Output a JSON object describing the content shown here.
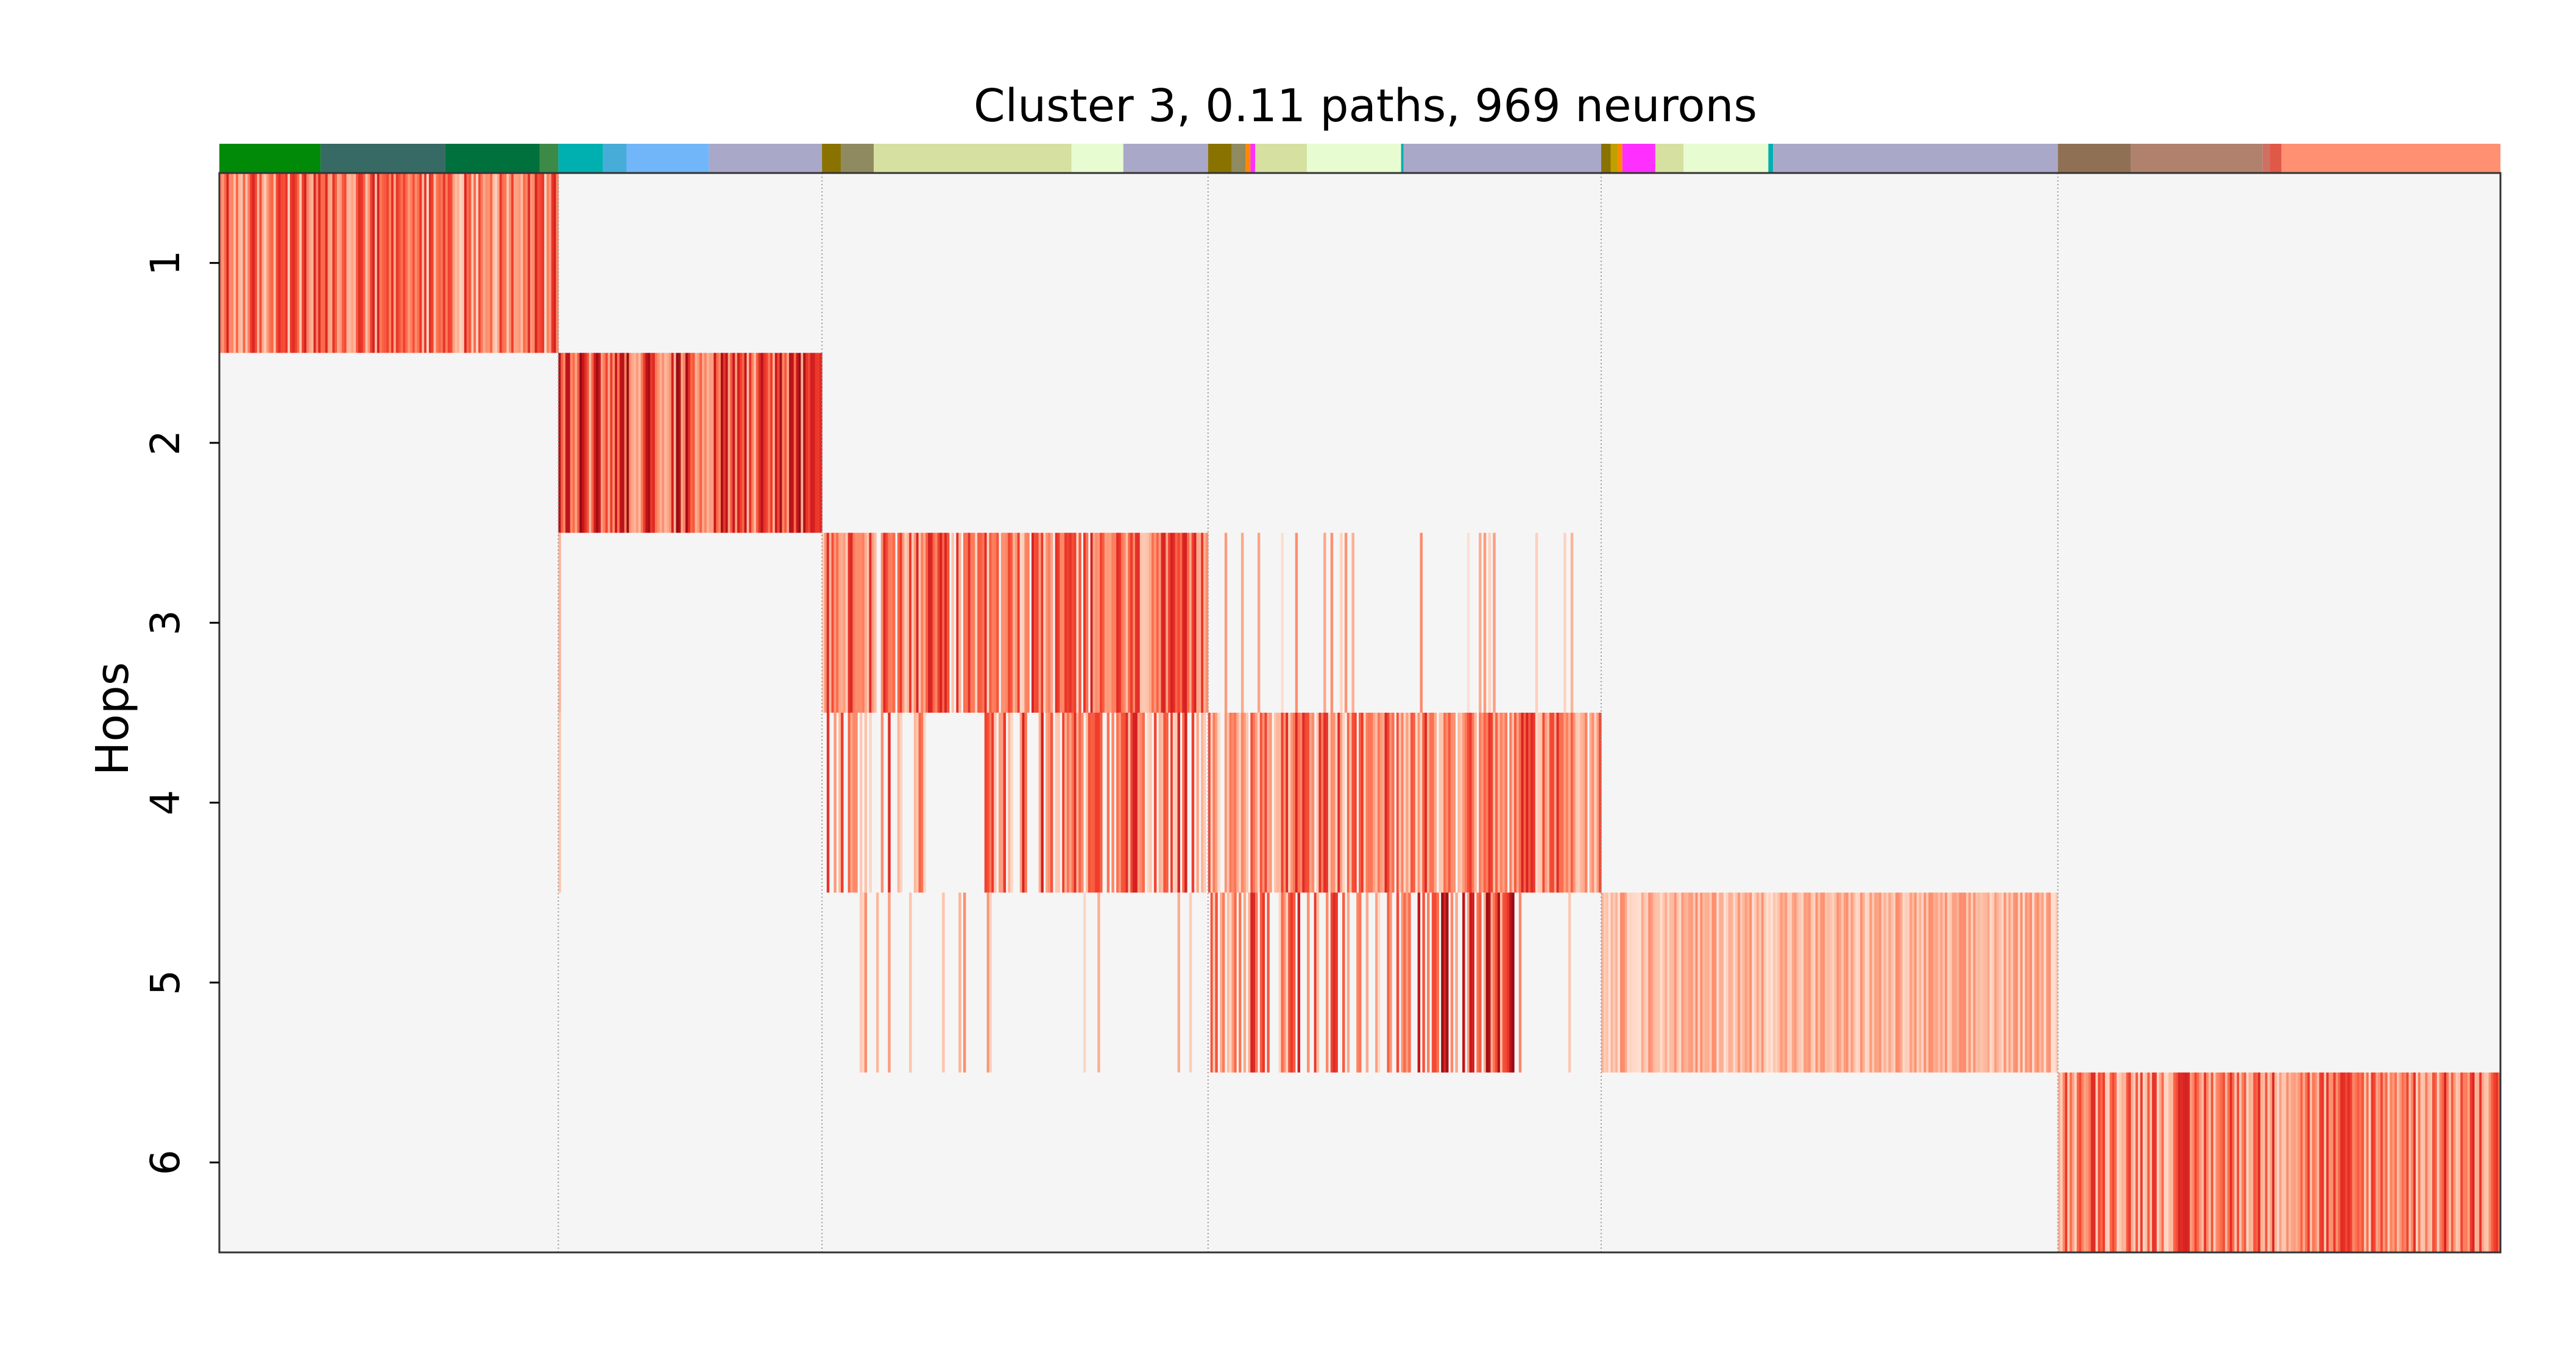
{
  "chart_data": {
    "type": "heatmap",
    "title": "Cluster 3, 0.11 paths, 969 neurons",
    "ylabel": "Hops",
    "xlabel": "",
    "y_categories": [
      "1",
      "2",
      "3",
      "4",
      "5",
      "6"
    ],
    "n_columns": 969,
    "grid": false,
    "colormap": "Reds",
    "background_color": "#f5f5f5",
    "legend": "none",
    "hop_boundaries": [
      144,
      256,
      420,
      587,
      781
    ],
    "rows": [
      {
        "hop": "1",
        "bands": [
          {
            "from": 0,
            "to": 144,
            "density": 1.0,
            "level": "medium"
          }
        ]
      },
      {
        "hop": "2",
        "bands": [
          {
            "from": 144,
            "to": 256,
            "density": 1.0,
            "level": "high"
          }
        ]
      },
      {
        "hop": "3",
        "bands": [
          {
            "from": 144,
            "to": 145,
            "density": 0.6,
            "level": "low"
          },
          {
            "from": 256,
            "to": 420,
            "density": 0.93,
            "level": "medium"
          },
          {
            "from": 420,
            "to": 587,
            "density": 0.1,
            "level": "low"
          }
        ]
      },
      {
        "hop": "4",
        "bands": [
          {
            "from": 144,
            "to": 145,
            "density": 0.6,
            "level": "low"
          },
          {
            "from": 256,
            "to": 300,
            "density": 0.6,
            "level": "medium"
          },
          {
            "from": 300,
            "to": 325,
            "density": 0.0,
            "level": "low"
          },
          {
            "from": 325,
            "to": 420,
            "density": 0.72,
            "level": "medium"
          },
          {
            "from": 420,
            "to": 587,
            "density": 0.95,
            "level": "medium"
          }
        ]
      },
      {
        "hop": "5",
        "bands": [
          {
            "from": 144,
            "to": 145,
            "density": 0.4,
            "level": "low"
          },
          {
            "from": 256,
            "to": 420,
            "density": 0.07,
            "level": "low"
          },
          {
            "from": 420,
            "to": 505,
            "density": 0.4,
            "level": "medium"
          },
          {
            "from": 505,
            "to": 550,
            "density": 0.6,
            "level": "high"
          },
          {
            "from": 550,
            "to": 587,
            "density": 0.05,
            "level": "low"
          },
          {
            "from": 587,
            "to": 781,
            "density": 1.0,
            "level": "low"
          }
        ]
      },
      {
        "hop": "6",
        "bands": [
          {
            "from": 781,
            "to": 969,
            "density": 1.0,
            "level": "medium"
          }
        ]
      }
    ],
    "category_bar": [
      {
        "to": 43,
        "color": "#008a08"
      },
      {
        "to": 96,
        "color": "#376a64"
      },
      {
        "to": 136,
        "color": "#00703c"
      },
      {
        "to": 144,
        "color": "#3c8a48"
      },
      {
        "to": 163,
        "color": "#00b0b0"
      },
      {
        "to": 173,
        "color": "#48acd8"
      },
      {
        "to": 208,
        "color": "#72b6fa"
      },
      {
        "to": 256,
        "color": "#aaa8c8"
      },
      {
        "to": 264,
        "color": "#8a7200"
      },
      {
        "to": 278,
        "color": "#908a60"
      },
      {
        "to": 362,
        "color": "#d6e0a0"
      },
      {
        "to": 384,
        "color": "#e8fcd2"
      },
      {
        "to": 420,
        "color": "#aaa8c8"
      },
      {
        "to": 430,
        "color": "#8a7200"
      },
      {
        "to": 436,
        "color": "#908a60"
      },
      {
        "to": 438,
        "color": "#ff8800"
      },
      {
        "to": 440,
        "color": "#ff30ff"
      },
      {
        "to": 462,
        "color": "#d6e0a0"
      },
      {
        "to": 502,
        "color": "#e8fcd2"
      },
      {
        "to": 503,
        "color": "#00b0b0"
      },
      {
        "to": 587,
        "color": "#aaa8c8"
      },
      {
        "to": 591,
        "color": "#8a7200"
      },
      {
        "to": 594,
        "color": "#c0a000"
      },
      {
        "to": 596,
        "color": "#ff8800"
      },
      {
        "to": 610,
        "color": "#ff30ff"
      },
      {
        "to": 622,
        "color": "#d6e0a0"
      },
      {
        "to": 658,
        "color": "#e8fcd2"
      },
      {
        "to": 660,
        "color": "#00b0b0"
      },
      {
        "to": 781,
        "color": "#aaa8c8"
      },
      {
        "to": 812,
        "color": "#907054"
      },
      {
        "to": 868,
        "color": "#b0826e"
      },
      {
        "to": 871,
        "color": "#d07060"
      },
      {
        "to": 876,
        "color": "#e05848"
      },
      {
        "to": 969,
        "color": "#ff9072"
      }
    ]
  }
}
